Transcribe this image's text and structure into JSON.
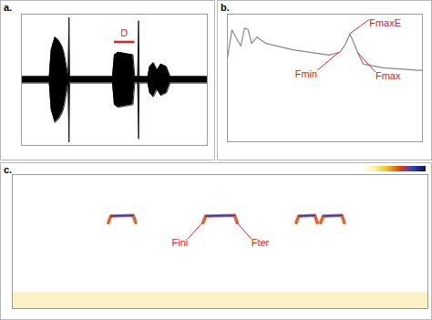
{
  "chart_data": [
    {
      "type": "area",
      "title": "a.",
      "color": "#000000",
      "tick_labels": false,
      "xlim": [
        0,
        100
      ],
      "ylim": [
        -1,
        1
      ],
      "x": [
        0,
        15,
        16,
        18,
        20,
        22,
        23,
        25.2,
        25.6,
        26,
        49,
        50,
        52,
        56,
        60,
        61,
        62.6,
        63,
        63.4,
        68,
        69,
        71,
        73,
        75,
        78,
        80,
        100
      ],
      "values": [
        0.05,
        0.05,
        0.45,
        0.65,
        0.6,
        0.5,
        0.4,
        0.05,
        0.95,
        0.05,
        0.05,
        0.38,
        0.42,
        0.4,
        0.38,
        0.05,
        0.05,
        0.9,
        0.05,
        0.05,
        0.2,
        0.26,
        0.15,
        0.24,
        0.2,
        0.05,
        0.05
      ],
      "lower_values": [
        -0.05,
        -0.05,
        -0.45,
        -0.65,
        -0.6,
        -0.5,
        -0.4,
        -0.05,
        -0.95,
        -0.05,
        -0.05,
        -0.38,
        -0.42,
        -0.4,
        -0.38,
        -0.05,
        -0.05,
        -0.9,
        -0.05,
        -0.05,
        -0.2,
        -0.26,
        -0.15,
        -0.24,
        -0.2,
        -0.05,
        -0.05
      ],
      "annotations": [
        {
          "text": "D",
          "x": [
            50,
            61
          ],
          "y": 0.57,
          "color": "#e02020"
        }
      ]
    },
    {
      "type": "line",
      "title": "b.",
      "color": "#888888",
      "tick_labels": false,
      "xlim": [
        0,
        100
      ],
      "ylim": [
        -100,
        0
      ],
      "x": [
        0,
        2.3,
        6.9,
        8.8,
        10.6,
        12.4,
        15.2,
        19.8,
        33.6,
        52,
        57.6,
        60.4,
        62.7,
        64,
        66.8,
        69.6,
        79.7,
        98.2,
        100
      ],
      "values": [
        -35,
        -12.5,
        -25,
        -11,
        -12,
        -23,
        -18,
        -23,
        -28,
        -32,
        -30,
        -24,
        -16,
        -19.5,
        -30,
        -39,
        -42,
        -44,
        -44
      ],
      "annotations": [
        {
          "text": "FmaxE",
          "x": 62.7,
          "y": -16,
          "color": "#e02020"
        },
        {
          "text": "Fmin",
          "x": 57.6,
          "y": -30,
          "color": "#e02020"
        },
        {
          "text": "Fmax",
          "x": 66.8,
          "y": -30,
          "color": "#e02020"
        }
      ]
    },
    {
      "type": "line",
      "title": "c.",
      "color": "#e8602c",
      "tick_labels": false,
      "xlim": [
        0,
        100
      ],
      "ylim": [
        0,
        100
      ],
      "noise_band": [
        0,
        12
      ],
      "color_bar": [
        "#ffffff",
        "#fff3a0",
        "#f0c020",
        "#e04010",
        "#3040c0",
        "#101040"
      ],
      "series": [
        {
          "x": [
            23.1,
            23.7,
            29.1,
            29.7
          ],
          "values": [
            64,
            69,
            69.5,
            64
          ]
        },
        {
          "x": [
            45.9,
            46.5,
            53.5,
            54.1
          ],
          "values": [
            64,
            69,
            69.5,
            64
          ]
        },
        {
          "x": [
            68.3,
            68.9,
            72.8,
            73.4
          ],
          "values": [
            64,
            69,
            69.5,
            64
          ]
        },
        {
          "x": [
            74.2,
            74.8,
            79.3,
            79.9
          ],
          "values": [
            64,
            69,
            69.5,
            64
          ]
        }
      ],
      "annotations": [
        {
          "text": "Fini",
          "x": 45.9,
          "y": 64,
          "color": "#e02020"
        },
        {
          "text": "Fter",
          "x": 54.1,
          "y": 64,
          "color": "#e02020"
        }
      ]
    }
  ]
}
